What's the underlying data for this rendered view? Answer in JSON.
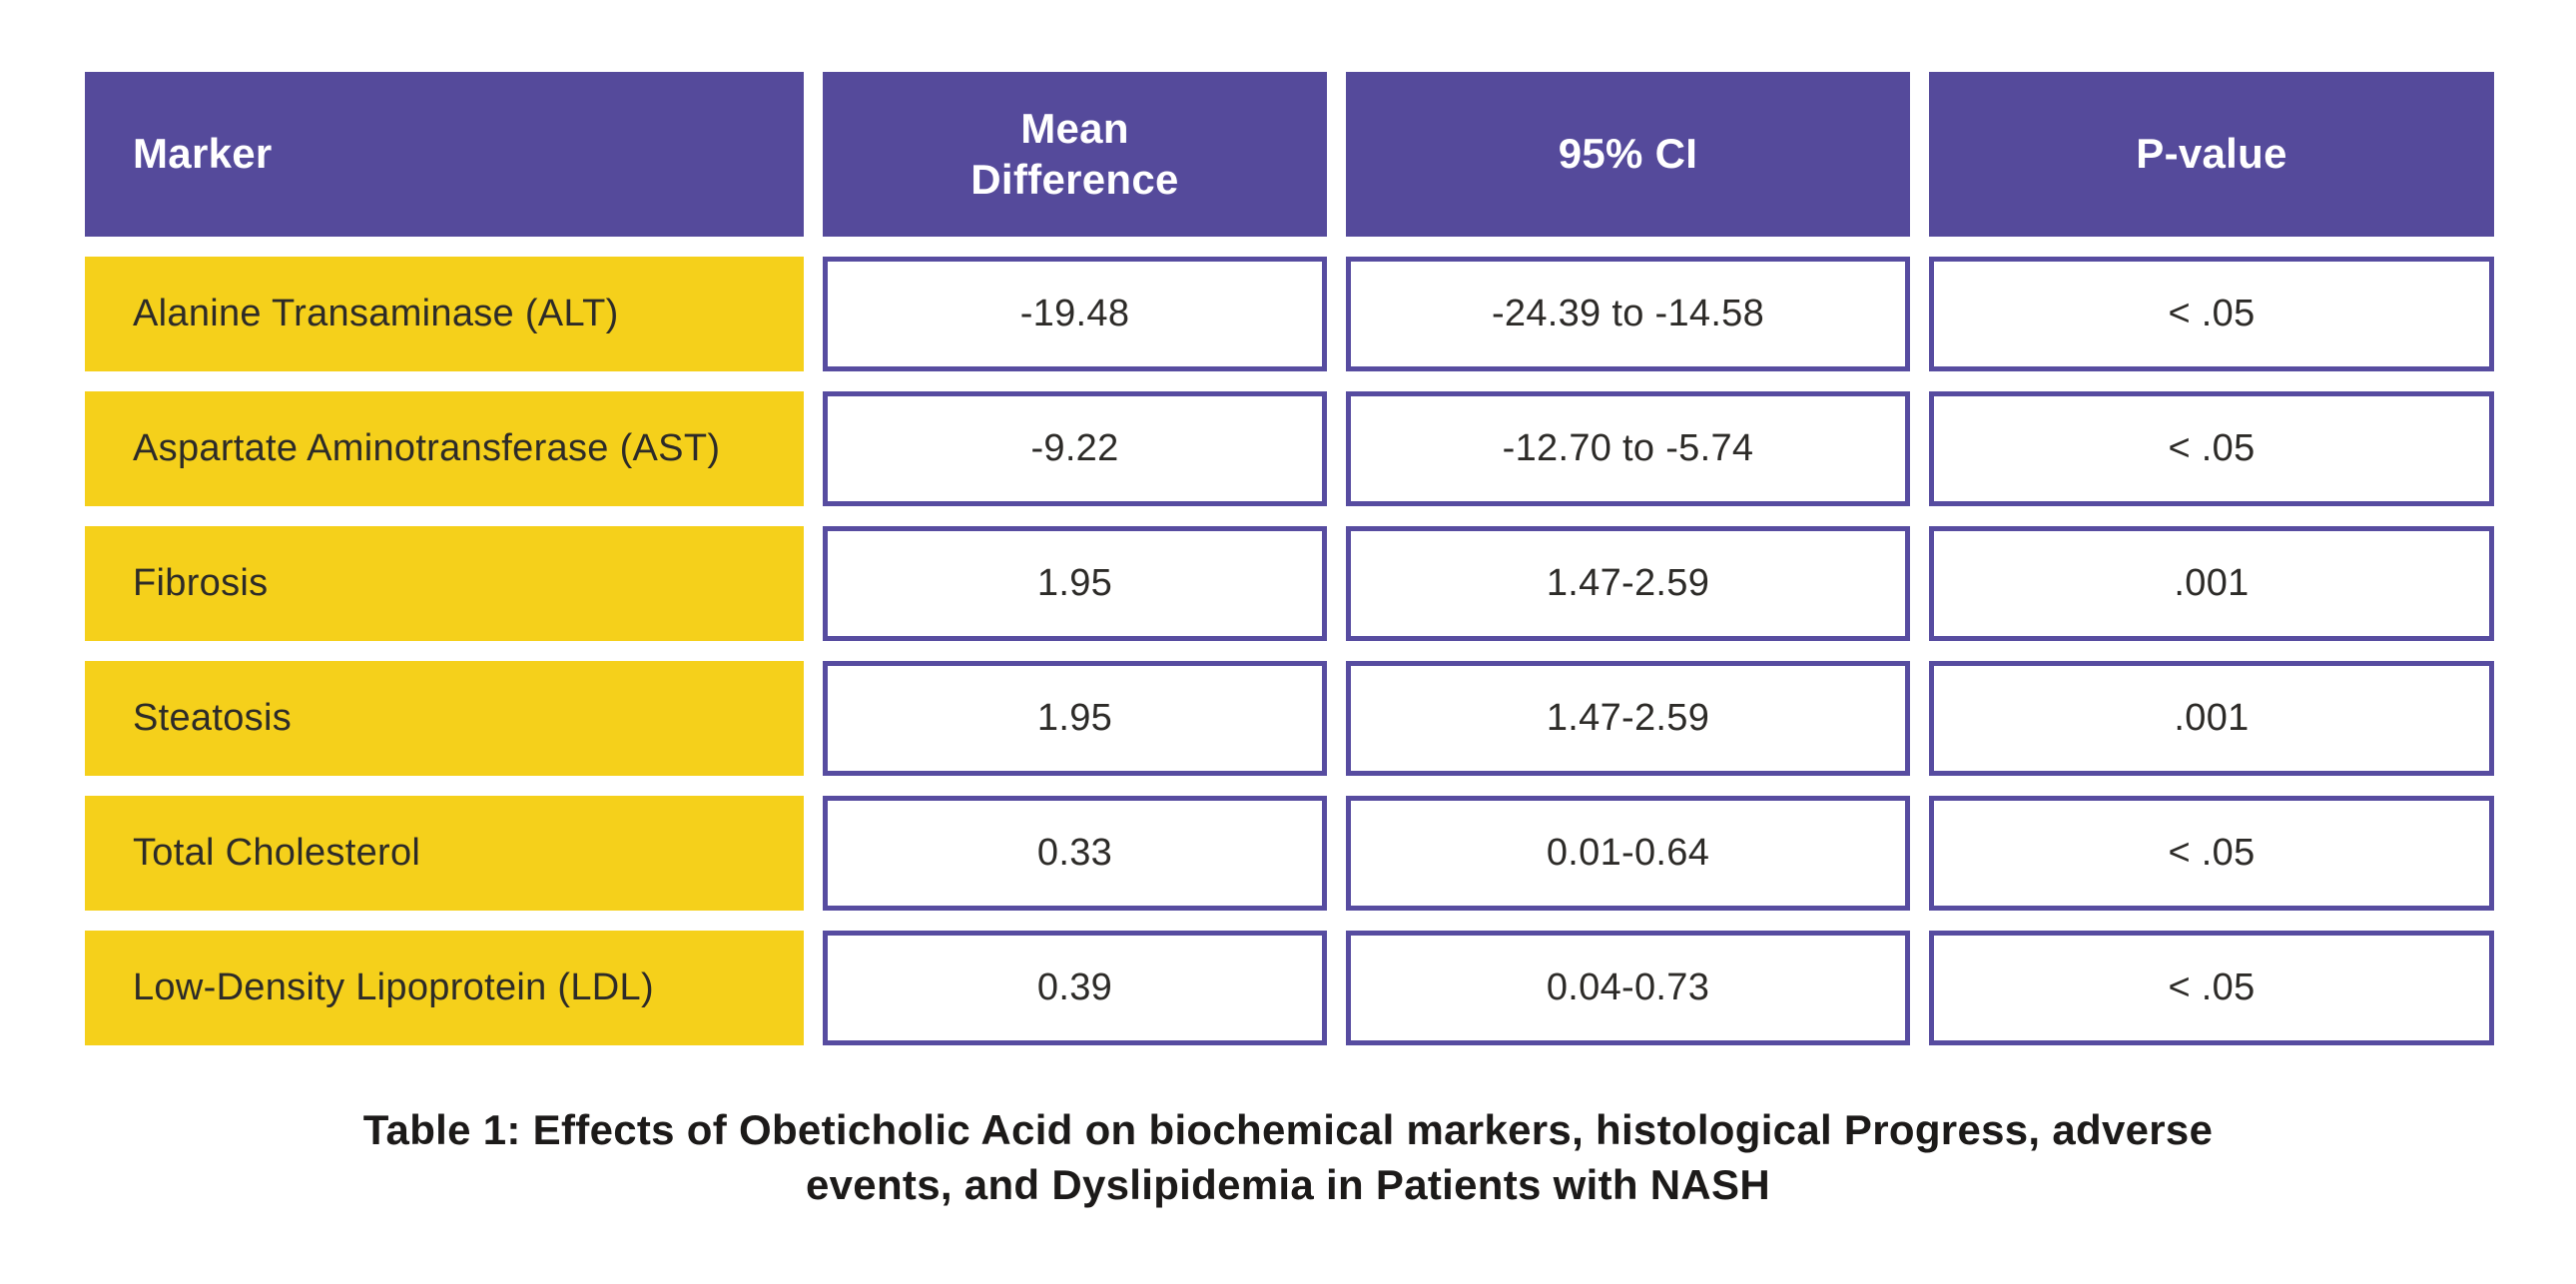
{
  "colors": {
    "header_purple": "#554a9b",
    "cell_border_purple": "#574ca0",
    "row_yellow": "#f5d01b",
    "header_text": "#ffffff",
    "body_text": "#2d2b28",
    "caption_text": "#1c1a19",
    "background": "#ffffff"
  },
  "table": {
    "columns": [
      "Marker",
      "Mean Difference",
      "95% CI",
      "P-value"
    ],
    "rows": [
      {
        "marker": "Alanine Transaminase (ALT)",
        "mean_difference": "-19.48",
        "ci": "-24.39 to -14.58",
        "p_value": "< .05"
      },
      {
        "marker": "Aspartate Aminotransferase (AST)",
        "mean_difference": "-9.22",
        "ci": "-12.70 to -5.74",
        "p_value": "< .05"
      },
      {
        "marker": "Fibrosis",
        "mean_difference": "1.95",
        "ci": "1.47-2.59",
        "p_value": ".001"
      },
      {
        "marker": "Steatosis",
        "mean_difference": "1.95",
        "ci": "1.47-2.59",
        "p_value": ".001"
      },
      {
        "marker": "Total Cholesterol",
        "mean_difference": "0.33",
        "ci": "0.01-0.64",
        "p_value": "< .05"
      },
      {
        "marker": "Low-Density Lipoprotein (LDL)",
        "mean_difference": "0.39",
        "ci": "0.04-0.73",
        "p_value": "< .05"
      }
    ],
    "caption": "Table 1: Effects of Obeticholic Acid on biochemical markers, histological Progress, adverse events, and Dyslipidemia in Patients with NASH"
  },
  "chart_data": {
    "type": "table",
    "title": "Table 1: Effects of Obeticholic Acid on biochemical markers, histological Progress, adverse events, and Dyslipidemia in Patients with NASH",
    "columns": [
      "Marker",
      "Mean Difference",
      "95% CI",
      "P-value"
    ],
    "rows": [
      [
        "Alanine Transaminase (ALT)",
        "-19.48",
        "-24.39 to -14.58",
        "< .05"
      ],
      [
        "Aspartate Aminotransferase (AST)",
        "-9.22",
        "-12.70 to -5.74",
        "< .05"
      ],
      [
        "Fibrosis",
        "1.95",
        "1.47-2.59",
        ".001"
      ],
      [
        "Steatosis",
        "1.95",
        "1.47-2.59",
        ".001"
      ],
      [
        "Total Cholesterol",
        "0.33",
        "0.01-0.64",
        "< .05"
      ],
      [
        "Low-Density Lipoprotein (LDL)",
        "0.39",
        "0.04-0.73",
        "< .05"
      ]
    ],
    "legend_position": "none",
    "grid": false
  }
}
